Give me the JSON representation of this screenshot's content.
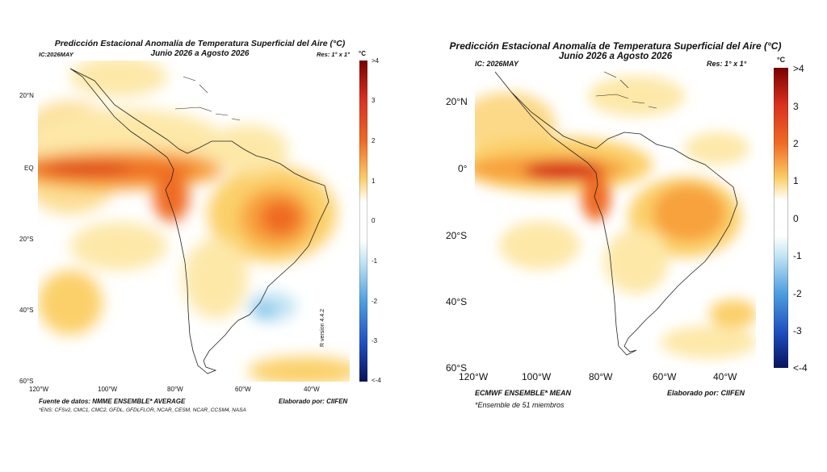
{
  "left": {
    "title_line1": "Predicción Estacional Anomalía de Temperatura Superficial del Aire (°C)",
    "title_line2": "Junio 2026 a Agosto 2026",
    "ic": "IC:2026MAY",
    "res": "Res: 1° x 1°",
    "unit": "°C",
    "lat_ticks": [
      "20°N",
      "EQ",
      "20°S",
      "40°S",
      "60°S"
    ],
    "lon_ticks": [
      "120°W",
      "100°W",
      "80°W",
      "60°W",
      "40°W"
    ],
    "cbar_ticks": [
      ">4",
      "3",
      "2",
      "1",
      "0",
      "-1",
      "-2",
      "-3",
      "<-4"
    ],
    "version": "R version 4.4.2",
    "source": "Fuente de datos: NMME ENSEMBLE* AVERAGE",
    "credit": "Elaborado por: CIIFEN",
    "footnote": "*ENS: CFSv2, CMC1, CMC2, GFDL, GFDLFLOR, NCAR_CESM, NCAR_CCSM4, NASA"
  },
  "right": {
    "title_line1": "Predicción Estacional Anomalía de Temperatura Superficial del Aire (°C)",
    "title_line2": "Junio 2026 a Agosto 2026",
    "ic": "IC: 2026MAY",
    "res": "Res: 1° x 1°",
    "unit": "°C",
    "lat_ticks": [
      "20°N",
      "0°",
      "20°S",
      "40°S",
      "60°S"
    ],
    "lon_ticks": [
      "120°W",
      "100°W",
      "80°W",
      "60°W",
      "40°W"
    ],
    "cbar_ticks": [
      ">4",
      "3",
      "2",
      "1",
      "0",
      "-1",
      "-2",
      "-3",
      "<-4"
    ],
    "source": "ECMWF ENSEMBLE* MEAN",
    "credit": "Elaborado por: CIIFEN",
    "footnote": "*Ensemble de 51 miembros"
  },
  "colors": {
    "warm1": "#fde8a8",
    "warm2": "#fbd06a",
    "warm3": "#f7a23c",
    "warm4": "#ef6a24",
    "warm5": "#d7301f",
    "cool1": "#bfe3f2",
    "cool2": "#7ec3ea"
  }
}
